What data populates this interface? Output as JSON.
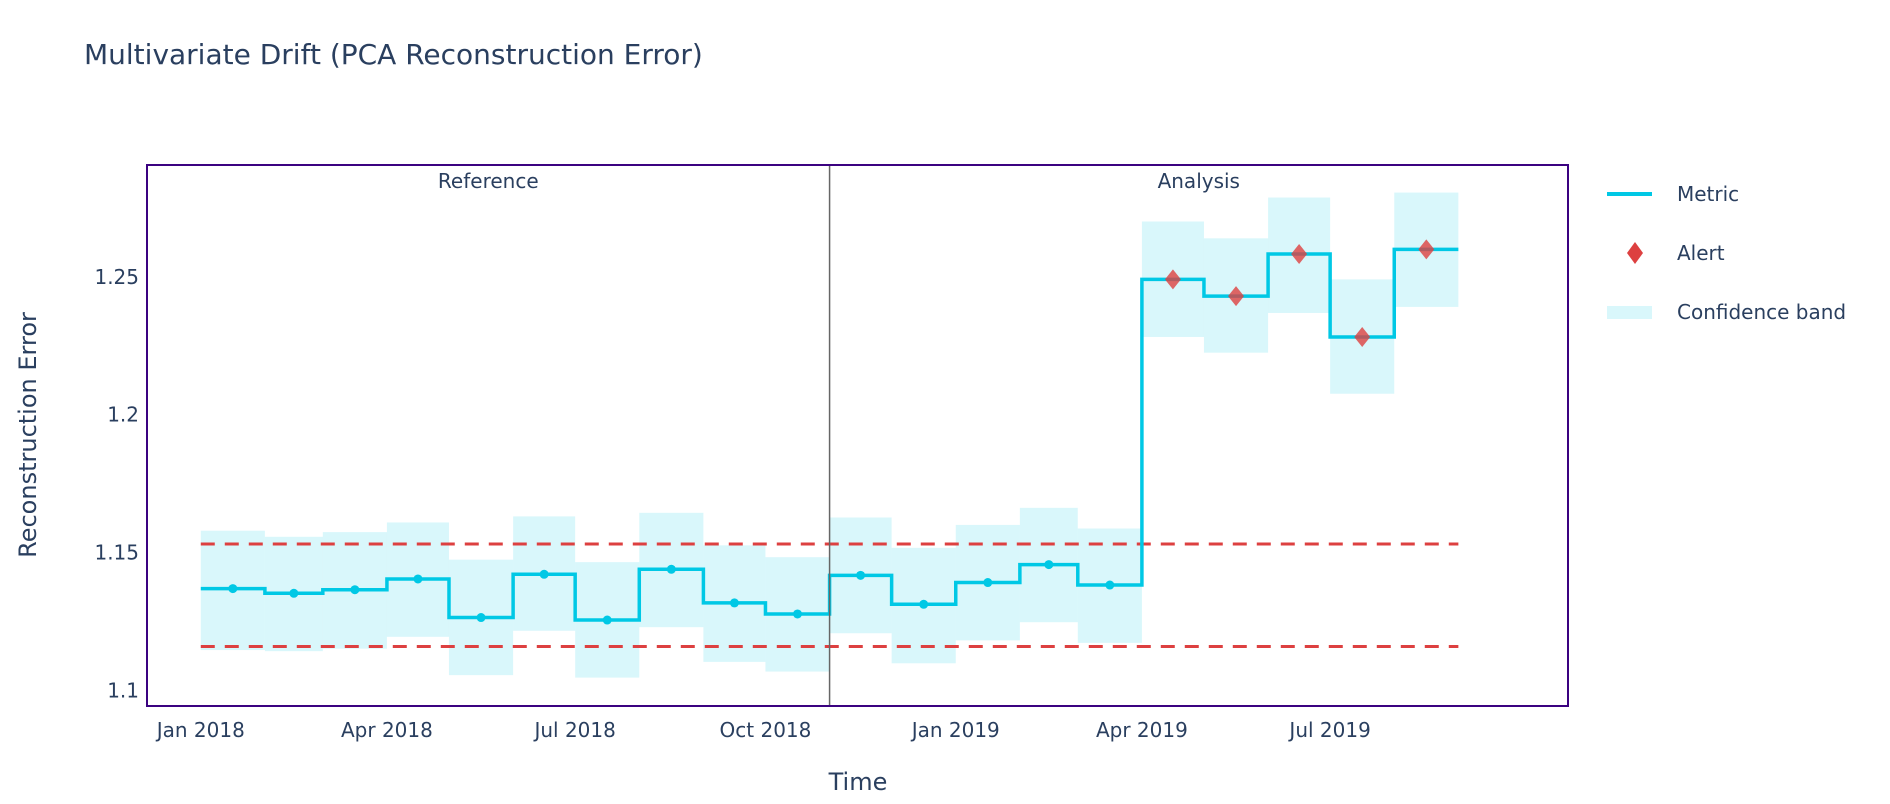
{
  "chart_data": {
    "type": "line",
    "title": "Multivariate Drift (PCA Reconstruction Error)",
    "xlabel": "Time",
    "ylabel": "Reconstruction Error",
    "x_ticks": [
      "Jan 2018",
      "Apr 2018",
      "Jul 2018",
      "Oct 2018",
      "Jan 2019",
      "Apr 2019",
      "Jul 2019"
    ],
    "y_ticks": [
      "1.1",
      "1.15",
      "1.2",
      "1.25"
    ],
    "ylim": [
      1.0943,
      1.2906
    ],
    "xlim": [
      "2017-12-06",
      "2019-10-24"
    ],
    "grid": false,
    "legend_position": "right",
    "legend": [
      "Metric",
      "Alert",
      "Confidence band"
    ],
    "period_labels": [
      "Reference",
      "Analysis"
    ],
    "period_split": "2018-11-01",
    "periods_start": [
      "2018-01-01",
      "2018-02-01",
      "2018-03-01",
      "2018-04-01",
      "2018-05-01",
      "2018-06-01",
      "2018-07-01",
      "2018-08-01",
      "2018-09-01",
      "2018-10-01",
      "2018-11-01",
      "2018-12-01",
      "2019-01-01",
      "2019-02-01",
      "2019-03-01",
      "2019-04-01",
      "2019-05-01",
      "2019-06-01",
      "2019-07-01",
      "2019-08-01"
    ],
    "periods_end": "2019-09-01",
    "metric": [
      1.1369,
      1.1352,
      1.1365,
      1.1404,
      1.1264,
      1.1421,
      1.1255,
      1.1439,
      1.1317,
      1.1277,
      1.1417,
      1.1312,
      1.1391,
      1.1456,
      1.1382,
      1.2491,
      1.243,
      1.2583,
      1.2282,
      1.26
    ],
    "band_upper": [
      1.1579,
      1.1557,
      1.1574,
      1.1609,
      1.1474,
      1.1631,
      1.1465,
      1.1644,
      1.1526,
      1.1483,
      1.1627,
      1.1517,
      1.16,
      1.1662,
      1.1587,
      1.2701,
      1.264,
      1.2788,
      1.2491,
      1.2806
    ],
    "band_lower": [
      1.1146,
      1.1142,
      1.1151,
      1.1194,
      1.1055,
      1.1216,
      1.1046,
      1.1229,
      1.1103,
      1.1068,
      1.1207,
      1.1098,
      1.1181,
      1.1247,
      1.1172,
      1.2282,
      1.2225,
      1.2369,
      1.2076,
      1.2391
    ],
    "alert": [
      false,
      false,
      false,
      false,
      false,
      false,
      false,
      false,
      false,
      false,
      false,
      false,
      false,
      false,
      false,
      true,
      true,
      true,
      true,
      true
    ],
    "upper_threshold": 1.1531,
    "lower_threshold": 1.1159,
    "colors": {
      "metric": "#00c8e5",
      "band": "#00c8e5",
      "alert": "#dd4040",
      "threshold": "#dd4040",
      "border": "#3b0280",
      "divider": "#666666",
      "text": "#2a3f5f"
    }
  }
}
